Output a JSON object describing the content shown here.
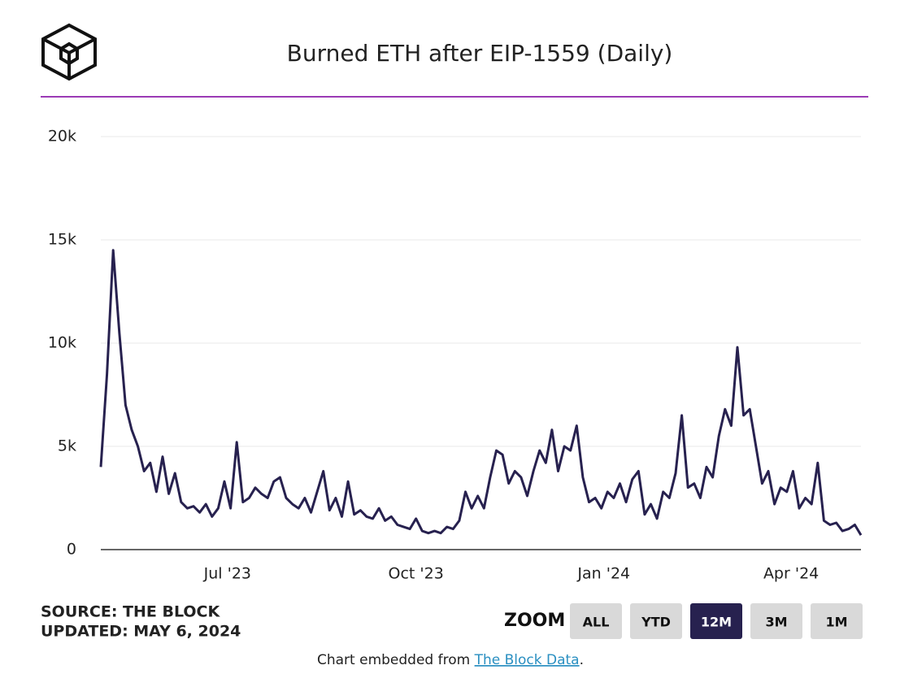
{
  "chart_data": {
    "type": "line",
    "title": "Burned ETH after EIP-1559 (Daily)",
    "color": "#27214f",
    "values": [
      4000,
      8500,
      14500,
      10500,
      7000,
      5800,
      5000,
      3800,
      4200,
      2800,
      4500,
      2700,
      3700,
      2300,
      2000,
      2100,
      1800,
      2200,
      1600,
      2000,
      3300,
      2000,
      5200,
      2300,
      2500,
      3000,
      2700,
      2500,
      3300,
      3500,
      2500,
      2200,
      2000,
      2500,
      1800,
      2800,
      3800,
      1900,
      2500,
      1600,
      3300,
      1700,
      1900,
      1600,
      1500,
      2000,
      1400,
      1600,
      1200,
      1100,
      1000,
      1500,
      900,
      800,
      900,
      800,
      1100,
      1000,
      1400,
      2800,
      2000,
      2600,
      2000,
      3500,
      4800,
      4600,
      3200,
      3800,
      3500,
      2600,
      3800,
      4800,
      4200,
      5800,
      3800,
      5000,
      4800,
      6000,
      3500,
      2300,
      2500,
      2000,
      2800,
      2500,
      3200,
      2300,
      3400,
      3800,
      1700,
      2200,
      1500,
      2800,
      2500,
      3700,
      6500,
      3000,
      3200,
      2500,
      4000,
      3500,
      5500,
      6800,
      6000,
      9800,
      6500,
      6800,
      5000,
      3200,
      3800,
      2200,
      3000,
      2800,
      3800,
      2000,
      2500,
      2200,
      4200,
      1400,
      1200,
      1300,
      900,
      1000,
      1200,
      700
    ],
    "xlim": [
      0,
      123
    ],
    "xticks": [
      {
        "value": 20.5,
        "label": "Jul '23"
      },
      {
        "value": 51,
        "label": "Oct '23"
      },
      {
        "value": 81.4,
        "label": "Jan '24"
      },
      {
        "value": 111.7,
        "label": "Apr '24"
      }
    ],
    "ylim": [
      0,
      20000
    ],
    "yticks": [
      0,
      {
        "value": 5000,
        "label": "5k"
      },
      {
        "value": 10000,
        "label": "10k"
      },
      {
        "value": 15000,
        "label": "15k"
      },
      {
        "value": 20000,
        "label": "20k"
      }
    ],
    "grid": true
  },
  "source": "SOURCE: THE BLOCK",
  "updated": "UPDATED: MAY 6, 2024",
  "zoom": {
    "label": "ZOOM",
    "buttons": [
      "ALL",
      "YTD",
      "12M",
      "3M",
      "1M"
    ],
    "active": "12M"
  },
  "footer": {
    "prefix": "Chart embedded from ",
    "link": "The Block Data",
    "suffix": "."
  }
}
